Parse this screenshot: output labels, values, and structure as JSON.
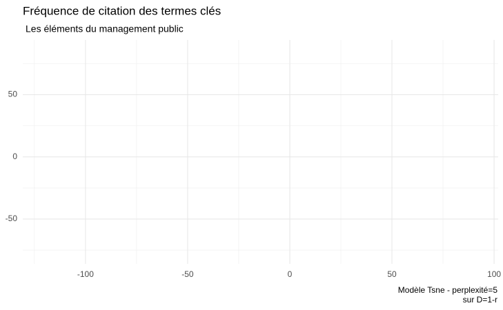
{
  "chart_data": {
    "type": "scatter",
    "title": "Fréquence de citation des termes clés",
    "subtitle": "Les éléments du management public",
    "caption": [
      "Modèle Tsne - perplexité=5",
      "sur D=1-r"
    ],
    "x": [],
    "y": [],
    "xlim": [
      -130.7,
      102
    ],
    "ylim": [
      -86,
      94
    ],
    "xticks": [
      -100,
      -50,
      0,
      50,
      100
    ],
    "yticks": [
      -50,
      0,
      50
    ],
    "x_minor_ticks": [
      -125,
      -75,
      -25,
      25,
      75
    ],
    "y_minor_ticks": [
      -75,
      -25,
      25,
      75
    ],
    "grid": true
  }
}
